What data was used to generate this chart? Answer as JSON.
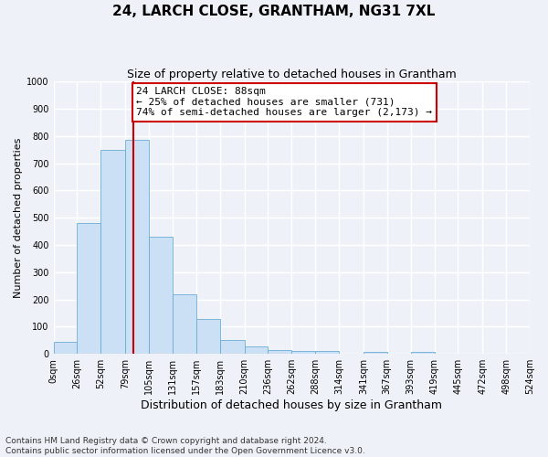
{
  "title": "24, LARCH CLOSE, GRANTHAM, NG31 7XL",
  "subtitle": "Size of property relative to detached houses in Grantham",
  "xlabel": "Distribution of detached houses by size in Grantham",
  "ylabel": "Number of detached properties",
  "bar_labels": [
    "0sqm",
    "26sqm",
    "52sqm",
    "79sqm",
    "105sqm",
    "131sqm",
    "157sqm",
    "183sqm",
    "210sqm",
    "236sqm",
    "262sqm",
    "288sqm",
    "314sqm",
    "341sqm",
    "367sqm",
    "393sqm",
    "419sqm",
    "445sqm",
    "472sqm",
    "498sqm",
    "524sqm"
  ],
  "bar_values": [
    45,
    480,
    750,
    785,
    430,
    218,
    128,
    52,
    28,
    15,
    10,
    10,
    0,
    8,
    0,
    8,
    0,
    0,
    0,
    0,
    0
  ],
  "bar_color": "#cce0f5",
  "bar_edge_color": "#6aaed6",
  "ylim": [
    0,
    1000
  ],
  "yticks": [
    0,
    100,
    200,
    300,
    400,
    500,
    600,
    700,
    800,
    900,
    1000
  ],
  "property_line_x": 88,
  "bin_edges": [
    0,
    26,
    52,
    79,
    105,
    131,
    157,
    183,
    210,
    236,
    262,
    288,
    314,
    341,
    367,
    393,
    419,
    445,
    472,
    498,
    524
  ],
  "annotation_title": "24 LARCH CLOSE: 88sqm",
  "annotation_line1": "← 25% of detached houses are smaller (731)",
  "annotation_line2": "74% of semi-detached houses are larger (2,173) →",
  "annotation_box_color": "#ffffff",
  "annotation_box_edge": "#cc0000",
  "vline_color": "#cc0000",
  "footer_line1": "Contains HM Land Registry data © Crown copyright and database right 2024.",
  "footer_line2": "Contains public sector information licensed under the Open Government Licence v3.0.",
  "background_color": "#eef2f8",
  "grid_color": "#ffffff",
  "title_fontsize": 11,
  "subtitle_fontsize": 9,
  "xlabel_fontsize": 9,
  "ylabel_fontsize": 8,
  "tick_fontsize": 7,
  "annotation_fontsize": 8,
  "footer_fontsize": 6.5
}
